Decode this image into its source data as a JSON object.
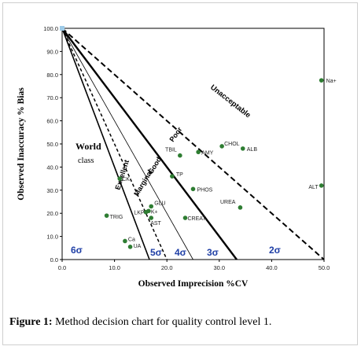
{
  "figure": {
    "caption_label": "Figure 1:",
    "caption_text": "Method decision chart for quality control level 1."
  },
  "chart_data": {
    "type": "scatter",
    "xlabel": "Observed Imprecision %CV",
    "ylabel": "Observed Inaccuracy % Bias",
    "xlim": [
      0,
      50
    ],
    "ylim": [
      0,
      100
    ],
    "x_ticks": [
      "0.0",
      "10.0",
      "20.0",
      "30.0",
      "40.0",
      "50.0"
    ],
    "y_ticks": [
      "0.0",
      "10.0",
      "20.0",
      "30.0",
      "40.0",
      "50.0",
      "60.0",
      "70.0",
      "80.0",
      "90.0",
      "100.0"
    ],
    "point_color": "#2e7d32",
    "sigma_color": "#1f3fa6",
    "points": [
      {
        "label": "Na+",
        "x": 49.5,
        "y": 77.5
      },
      {
        "label": "ALT",
        "x": 49.5,
        "y": 32
      },
      {
        "label": "CHOL",
        "x": 30.5,
        "y": 49
      },
      {
        "label": "ALB",
        "x": 34.5,
        "y": 48
      },
      {
        "label": "AMY",
        "x": 26,
        "y": 46.5
      },
      {
        "label": "TBIL",
        "x": 22.5,
        "y": 45
      },
      {
        "label": "TP",
        "x": 21,
        "y": 36
      },
      {
        "label": "PHOS",
        "x": 25,
        "y": 30.5
      },
      {
        "label": "UREA",
        "x": 34,
        "y": 22.5
      },
      {
        "label": "GLU",
        "x": 17,
        "y": 23
      },
      {
        "label": "K+",
        "x": 16.5,
        "y": 21
      },
      {
        "label": "LKP",
        "x": 16,
        "y": 20.5
      },
      {
        "label": "CREAT",
        "x": 23.5,
        "y": 18
      },
      {
        "label": "AST",
        "x": 17,
        "y": 18
      },
      {
        "label": "TRIG",
        "x": 8.5,
        "y": 19
      },
      {
        "label": "Ca",
        "x": 12,
        "y": 8
      },
      {
        "label": "UA",
        "x": 13,
        "y": 5.5
      },
      {
        "label": "CK",
        "x": 11,
        "y": 35
      }
    ],
    "sigma_lines": [
      {
        "label": "6σ",
        "x_intercept": 16.67,
        "style": "solid"
      },
      {
        "label": "5σ",
        "x_intercept": 20,
        "style": "dash"
      },
      {
        "label": "4σ",
        "x_intercept": 25,
        "style": "thin"
      },
      {
        "label": "3σ",
        "x_intercept": 33.33,
        "style": "bold"
      },
      {
        "label": "2σ",
        "x_intercept": 50,
        "style": "bold-dash"
      }
    ],
    "region_labels": [
      {
        "text": "World",
        "line2": "class"
      },
      {
        "text": "Excellent"
      },
      {
        "text": "Marginal"
      },
      {
        "text": "Good"
      },
      {
        "text": "Poor"
      },
      {
        "text": "Unacceptable"
      }
    ],
    "sigma_labels": [
      "6σ",
      "5σ",
      "4σ",
      "3σ",
      "2σ"
    ]
  }
}
